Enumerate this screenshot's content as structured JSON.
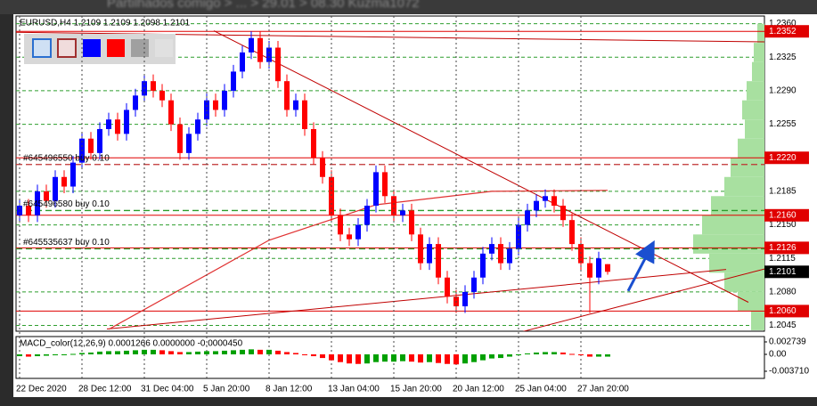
{
  "breadcrumb": "Partilhados comigo  >  ...  >  29.01  >  08.30 Kuzma1072",
  "chart_data": {
    "type": "candlestick",
    "title": "EURUSD,H4  1.2109 1.2109 1.2098 1.2101",
    "categories": [
      "22 Dec 2020",
      null,
      null,
      null,
      null,
      null,
      null,
      "28 Dec 12:00",
      null,
      null,
      null,
      null,
      null,
      null,
      "31 Dec 04:00",
      null,
      null,
      null,
      null,
      null,
      null,
      "5 Jan 20:00",
      null,
      null,
      null,
      null,
      null,
      null,
      "8 Jan 12:00",
      null,
      null,
      null,
      null,
      null,
      null,
      "13 Jan 04:00",
      null,
      null,
      null,
      null,
      null,
      null,
      "15 Jan 20:00",
      null,
      null,
      null,
      null,
      null,
      null,
      "20 Jan 12:00",
      null,
      null,
      null,
      null,
      null,
      null,
      "25 Jan 04:00",
      null,
      null,
      null,
      null,
      null,
      null,
      "27 Jan 20:00",
      null,
      null,
      null
    ],
    "values": [
      [
        1.216,
        1.2177,
        1.2153,
        1.217
      ],
      [
        1.217,
        1.2177,
        1.2153,
        1.216
      ],
      [
        1.216,
        1.2192,
        1.2153,
        1.2185
      ],
      [
        1.2185,
        1.2192,
        1.2168,
        1.2175
      ],
      [
        1.2175,
        1.2207,
        1.2168,
        1.22
      ],
      [
        1.22,
        1.2207,
        1.2183,
        1.219
      ],
      [
        1.219,
        1.2222,
        1.2183,
        1.2215
      ],
      [
        1.2215,
        1.2247,
        1.2208,
        1.224
      ],
      [
        1.224,
        1.2247,
        1.2218,
        1.2225
      ],
      [
        1.2225,
        1.2257,
        1.2218,
        1.225
      ],
      [
        1.225,
        1.2267,
        1.2243,
        1.226
      ],
      [
        1.226,
        1.2267,
        1.2238,
        1.2245
      ],
      [
        1.2245,
        1.2277,
        1.2238,
        1.227
      ],
      [
        1.227,
        1.2292,
        1.2263,
        1.2285
      ],
      [
        1.2285,
        1.2307,
        1.2278,
        1.23
      ],
      [
        1.23,
        1.2307,
        1.2283,
        1.229
      ],
      [
        1.229,
        1.2297,
        1.2273,
        1.228
      ],
      [
        1.228,
        1.2287,
        1.2248,
        1.2255
      ],
      [
        1.2255,
        1.2262,
        1.2218,
        1.2225
      ],
      [
        1.2225,
        1.2252,
        1.2218,
        1.2245
      ],
      [
        1.2245,
        1.2267,
        1.2238,
        1.226
      ],
      [
        1.226,
        1.2287,
        1.2253,
        1.228
      ],
      [
        1.228,
        1.2287,
        1.2263,
        1.227
      ],
      [
        1.227,
        1.2297,
        1.2263,
        1.229
      ],
      [
        1.229,
        1.2317,
        1.2283,
        1.231
      ],
      [
        1.231,
        1.2337,
        1.2303,
        1.233
      ],
      [
        1.233,
        1.2352,
        1.2323,
        1.2345
      ],
      [
        1.2345,
        1.2352,
        1.2313,
        1.232
      ],
      [
        1.232,
        1.2342,
        1.2313,
        1.2335
      ],
      [
        1.2335,
        1.2342,
        1.2293,
        1.23
      ],
      [
        1.23,
        1.2307,
        1.2263,
        1.227
      ],
      [
        1.227,
        1.2287,
        1.2263,
        1.228
      ],
      [
        1.228,
        1.2287,
        1.2243,
        1.225
      ],
      [
        1.225,
        1.2257,
        1.2213,
        1.222
      ],
      [
        1.222,
        1.2227,
        1.2193,
        1.22
      ],
      [
        1.22,
        1.2207,
        1.2153,
        1.216
      ],
      [
        1.216,
        1.2167,
        1.2133,
        1.214
      ],
      [
        1.214,
        1.2147,
        1.2128,
        1.2135
      ],
      [
        1.2135,
        1.2157,
        1.2128,
        1.215
      ],
      [
        1.215,
        1.2177,
        1.2143,
        1.217
      ],
      [
        1.217,
        1.2212,
        1.2163,
        1.2205
      ],
      [
        1.2205,
        1.2212,
        1.2173,
        1.218
      ],
      [
        1.218,
        1.2187,
        1.2153,
        1.216
      ],
      [
        1.216,
        1.2172,
        1.2153,
        1.2165
      ],
      [
        1.2165,
        1.2172,
        1.2133,
        1.214
      ],
      [
        1.214,
        1.2147,
        1.2103,
        1.211
      ],
      [
        1.211,
        1.2137,
        1.2103,
        1.213
      ],
      [
        1.213,
        1.2137,
        1.2088,
        1.2095
      ],
      [
        1.2095,
        1.2102,
        1.2068,
        1.2075
      ],
      [
        1.2075,
        1.2082,
        1.2058,
        1.2065
      ],
      [
        1.2065,
        1.2087,
        1.2058,
        1.208
      ],
      [
        1.208,
        1.2102,
        1.2073,
        1.2095
      ],
      [
        1.2095,
        1.2127,
        1.2088,
        1.212
      ],
      [
        1.212,
        1.2137,
        1.2113,
        1.213
      ],
      [
        1.213,
        1.2137,
        1.2103,
        1.211
      ],
      [
        1.211,
        1.2132,
        1.2103,
        1.2125
      ],
      [
        1.2125,
        1.2157,
        1.2118,
        1.215
      ],
      [
        1.215,
        1.2172,
        1.2143,
        1.2165
      ],
      [
        1.2165,
        1.2182,
        1.2158,
        1.2175
      ],
      [
        1.2175,
        1.2187,
        1.2168,
        1.218
      ],
      [
        1.218,
        1.2187,
        1.2163,
        1.217
      ],
      [
        1.217,
        1.2177,
        1.2148,
        1.2155
      ],
      [
        1.2155,
        1.2162,
        1.2123,
        1.213
      ],
      [
        1.213,
        1.2137,
        1.2103,
        1.211
      ],
      [
        1.211,
        1.2117,
        1.2058,
        1.2095
      ],
      [
        1.2095,
        1.2122,
        1.2088,
        1.2115
      ],
      [
        1.2109,
        1.2109,
        1.2098,
        1.2101
      ]
    ],
    "up_color": "#0000ff",
    "down_color": "#ff0000",
    "ylim": [
      1.2039,
      1.2368
    ],
    "yticks": [
      {
        "value": 1.236,
        "label": "1.2360"
      },
      1.2325,
      {
        "value": 1.229,
        "label": "1.2290"
      },
      1.2255,
      1.2185,
      {
        "value": 1.215,
        "label": "1.2150"
      },
      1.2115,
      {
        "value": 1.208,
        "label": "1.2080"
      },
      1.2045
    ],
    "grid": true,
    "grid_color": "#2e9e2e",
    "levels": [
      {
        "value": 1.2352,
        "color": "#e00000"
      },
      {
        "value": 1.222,
        "label": "1.2220",
        "color": "#e00000"
      },
      {
        "value": 1.216,
        "label": "1.2160",
        "color": "#e00000"
      },
      {
        "value": 1.2126,
        "color": "#e00000"
      },
      {
        "value": 1.206,
        "label": "1.2060",
        "color": "#e00000"
      }
    ],
    "orders": [
      {
        "label": "#645496550 buy 0.10",
        "value": 1.2213,
        "color": "#c03030"
      },
      {
        "label": "#645496580 buy 0.10",
        "value": 1.2165,
        "color": "#2e9e2e"
      },
      {
        "label": "#645535637 buy 0.10",
        "value": 1.2125,
        "color": "#2e9e2e"
      }
    ],
    "current_price": 1.2101,
    "trendlines": [
      {
        "x": [
          21.8,
          81.8
        ],
        "y": [
          1.23526,
          1.20692
        ],
        "color": "#c00000"
      },
      {
        "x": [
          9.8,
          79.3
        ],
        "y": [
          1.20413,
          1.21035
        ],
        "color": "#c00000"
      },
      {
        "x": [
          55.8,
          83.6
        ],
        "y": [
          1.2037,
          1.2104
        ],
        "color": "#c00000"
      },
      {
        "x": [
          -0.4,
          83.6
        ],
        "y": [
          1.2351,
          1.2341
        ],
        "color": "#c00000"
      }
    ],
    "ma": {
      "x": [
        10,
        28,
        40,
        53,
        66
      ],
      "y": [
        1.2041,
        1.2134,
        1.2171,
        1.2185,
        1.2186
      ],
      "color": "#e03030"
    },
    "arrow": {
      "x": [
        68.3,
        71
      ],
      "y": [
        1.2081,
        1.2129
      ],
      "color": "#1a4fd0"
    },
    "profile": {
      "prices": [
        1.235,
        1.233,
        1.231,
        1.229,
        1.227,
        1.225,
        1.223,
        1.221,
        1.219,
        1.217,
        1.215,
        1.213,
        1.211,
        1.209,
        1.207,
        1.205
      ],
      "values": [
        8,
        12,
        14,
        20,
        25,
        22,
        30,
        38,
        45,
        60,
        70,
        80,
        62,
        45,
        30,
        15
      ],
      "color": "#a8e0a0"
    },
    "macd": {
      "title": "MACD_color(12,26,9) 0.0001266 0.0000000 -0.0000450",
      "values": [
        -0.0004,
        -0.0005,
        -0.0004,
        -0.0003,
        -0.0002,
        -0.0001,
        0.0001,
        0.0003,
        0.0004,
        0.0006,
        0.0007,
        0.0007,
        0.0008,
        0.0009,
        0.001,
        0.001,
        0.0009,
        0.0007,
        0.0005,
        0.0005,
        0.0006,
        0.0007,
        0.0007,
        0.0008,
        0.0009,
        0.001,
        0.0011,
        0.001,
        0.001,
        0.0008,
        0.0005,
        0.0003,
        0,
        -0.0004,
        -0.0008,
        -0.0013,
        -0.0017,
        -0.002,
        -0.0021,
        -0.002,
        -0.0017,
        -0.0016,
        -0.0016,
        -0.0015,
        -0.0016,
        -0.0018,
        -0.0017,
        -0.0019,
        -0.0021,
        -0.0022,
        -0.002,
        -0.0017,
        -0.0013,
        -0.0009,
        -0.0008,
        -0.0005,
        -0.0001,
        0.0002,
        0.0004,
        0.0005,
        0.0005,
        0.0004,
        0.0001,
        -0.0002,
        -0.0005,
        -0.0005,
        -0.0005
      ],
      "ylim": [
        -0.00528,
        0.00391
      ],
      "yticks": [
        0.002739,
        {
          "value": 0,
          "label": "0.00"
        },
        {
          "value": -0.00371,
          "label": "-0.003710"
        }
      ],
      "up_color": "#00a000",
      "down_color": "#ff0000"
    }
  }
}
